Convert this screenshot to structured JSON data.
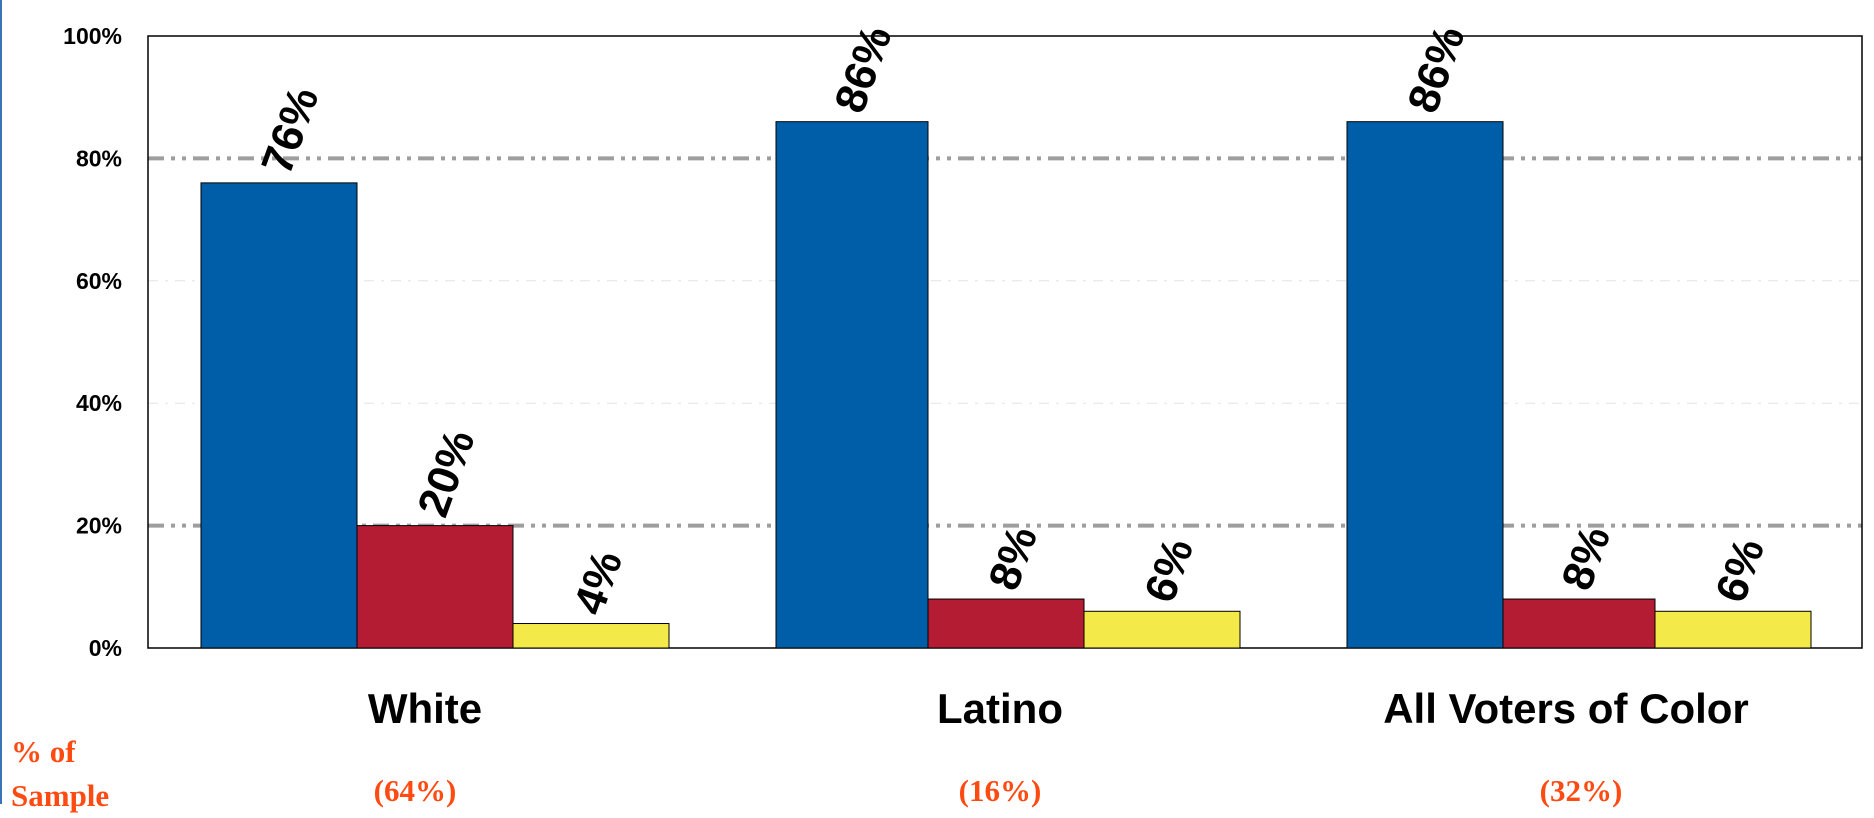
{
  "chart_data": {
    "type": "bar",
    "categories": [
      "White",
      "Latino",
      "All Voters of Color"
    ],
    "series": [
      {
        "values": [
          76,
          86,
          86
        ],
        "data_labels": [
          "76%",
          "86%",
          "86%"
        ],
        "color": "#005ea8"
      },
      {
        "values": [
          20,
          8,
          8
        ],
        "data_labels": [
          "20%",
          "8%",
          "8%"
        ],
        "color": "#b41c34"
      },
      {
        "values": [
          4,
          6,
          6
        ],
        "data_labels": [
          "4%",
          "6%",
          "6%"
        ],
        "color": "#f3ea4a"
      }
    ],
    "y_ticks": [
      "0%",
      "20%",
      "40%",
      "60%",
      "80%",
      "100%"
    ],
    "ylim": [
      0,
      100
    ],
    "gridlines": [
      20,
      40,
      60,
      80
    ],
    "emphasized_gridlines": [
      20,
      80
    ],
    "sample": {
      "title_lines": [
        "% of",
        "Sample"
      ],
      "values": [
        "(64%)",
        "(16%)",
        "(32%)"
      ],
      "color": "#ff4a12"
    }
  }
}
